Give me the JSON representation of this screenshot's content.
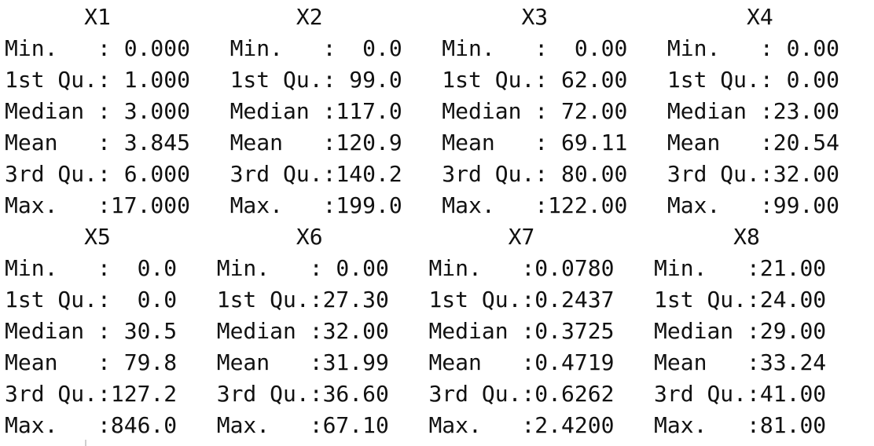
{
  "summary_output": {
    "lines": [
      "      X1              X2               X3               X4       ",
      "Min.   : 0.000   Min.   :  0.0   Min.   :  0.00   Min.   : 0.00  ",
      "1st Qu.: 1.000   1st Qu.: 99.0   1st Qu.: 62.00   1st Qu.: 0.00  ",
      "Median : 3.000   Median :117.0   Median : 72.00   Median :23.00  ",
      "Mean   : 3.845   Mean   :120.9   Mean   : 69.11   Mean   :20.54  ",
      "3rd Qu.: 6.000   3rd Qu.:140.2   3rd Qu.: 80.00   3rd Qu.:32.00  ",
      "Max.   :17.000   Max.   :199.0   Max.   :122.00   Max.   :99.00  ",
      "      X5              X6              X7               X8       ",
      "Min.   :  0.0   Min.   : 0.00   Min.   :0.0780   Min.   :21.00  ",
      "1st Qu.:  0.0   1st Qu.:27.30   1st Qu.:0.2437   1st Qu.:24.00  ",
      "Median : 30.5   Median :32.00   Median :0.3725   Median :29.00  ",
      "Mean   : 79.8   Mean   :31.99   Mean   :0.4719   Mean   :33.24  ",
      "3rd Qu.:127.2   3rd Qu.:36.60   3rd Qu.:0.6262   3rd Qu.:41.00  ",
      "Max.   :846.0   Max.   :67.10   Max.   :2.4200   Max.   :81.00  "
    ]
  }
}
